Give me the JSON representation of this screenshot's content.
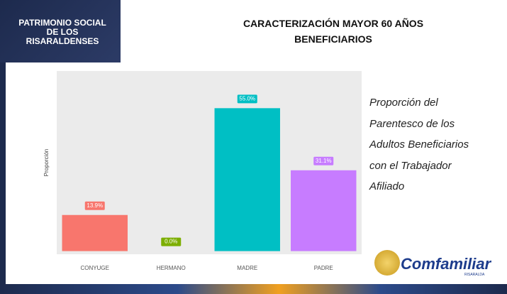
{
  "logo": "PATRIMONIO SOCIAL DE LOS RISARALDENSES",
  "brand": {
    "name": "Comfamiliar",
    "subtitle": "RISARALDA"
  },
  "chart_data": {
    "type": "bar",
    "title": "CARACTERIZACIÓN MAYOR 60 AÑOS BENEFICIARIOS",
    "annotation": "Proporción del Parentesco de los Adultos Beneficiarios con el Trabajador Afiliado",
    "y_label": "Proporción",
    "categories": [
      "CONYUGE",
      "HERMANO",
      "MADRE",
      "PADRE"
    ],
    "values": [
      13.9,
      0.0,
      55.0,
      31.1
    ],
    "value_labels": [
      "13.9%",
      "0.0%",
      "55.0%",
      "31.1%"
    ],
    "colors": [
      "#f8766d",
      "#7cae00",
      "#00bfc4",
      "#c77cff"
    ],
    "ylim": [
      -1.2,
      69.3
    ]
  }
}
